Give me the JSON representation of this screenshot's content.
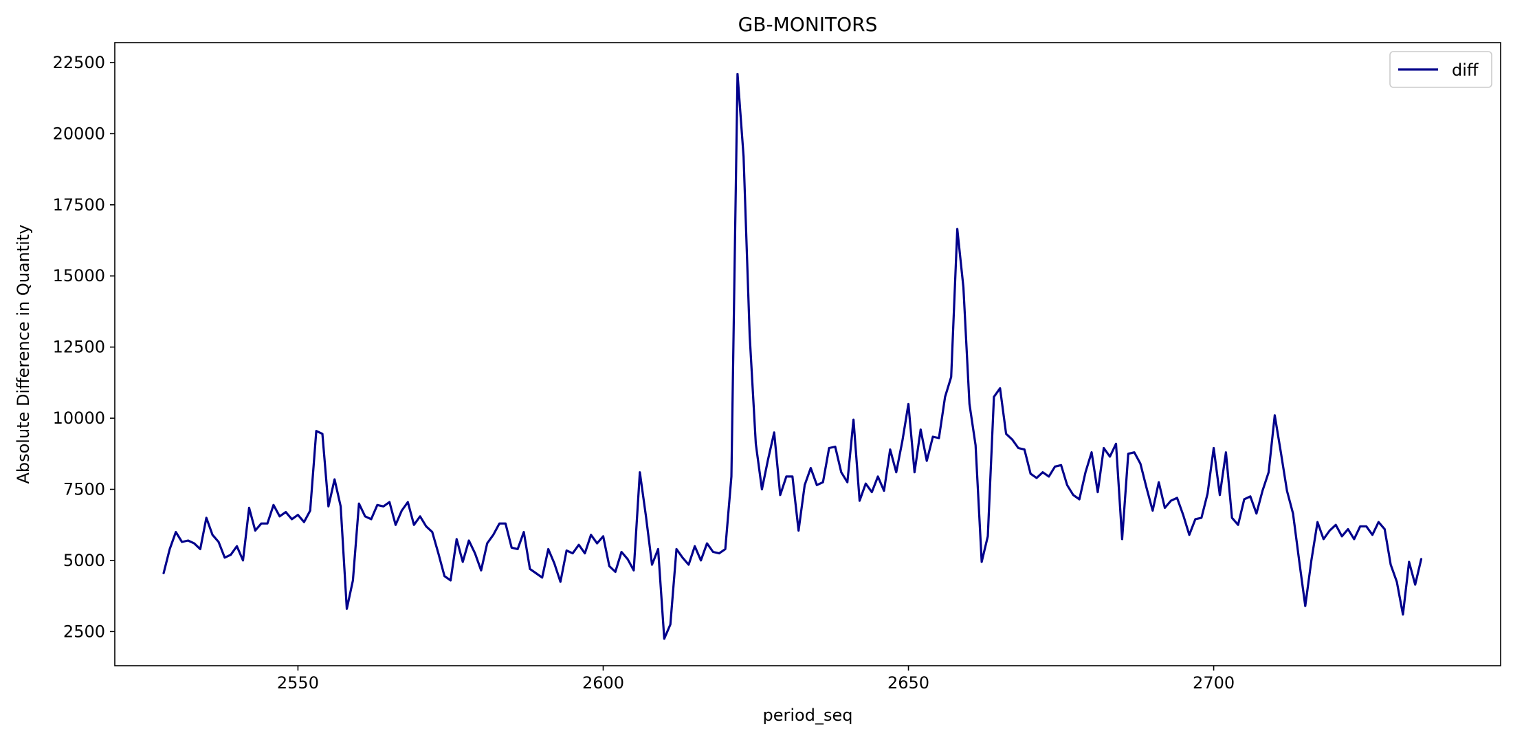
{
  "chart_data": {
    "type": "line",
    "title": "GB-MONITORS",
    "xlabel": "period_seq",
    "ylabel": "Absolute Difference in Quantity",
    "xlim": [
      2520,
      2747
    ],
    "ylim": [
      1300,
      23200
    ],
    "xticks": [
      2550,
      2600,
      2650,
      2700
    ],
    "xtick_labels": [
      "2550",
      "2600",
      "2650",
      "2700"
    ],
    "yticks": [
      2500,
      5000,
      7500,
      10000,
      12500,
      15000,
      17500,
      20000,
      22500
    ],
    "ytick_labels": [
      "2500",
      "5000",
      "7500",
      "10000",
      "12500",
      "15000",
      "17500",
      "20000",
      "22500"
    ],
    "grid": false,
    "legend_position": "top-right",
    "series": [
      {
        "name": "diff",
        "color": "#00008b",
        "x_start": 2528,
        "values": [
          4550,
          5400,
          6000,
          5650,
          5700,
          5600,
          5400,
          6500,
          5900,
          5650,
          5100,
          5200,
          5500,
          5000,
          6850,
          6050,
          6300,
          6300,
          6950,
          6550,
          6700,
          6450,
          6600,
          6350,
          6750,
          9550,
          9450,
          6900,
          7850,
          6900,
          3300,
          4300,
          7000,
          6550,
          6450,
          6950,
          6900,
          7050,
          6250,
          6750,
          7050,
          6250,
          6550,
          6200,
          6000,
          5250,
          4450,
          4300,
          5750,
          4950,
          5700,
          5250,
          4650,
          5600,
          5900,
          6300,
          6300,
          5450,
          5400,
          6000,
          4700,
          4550,
          4400,
          5400,
          4900,
          4250,
          5350,
          5250,
          5550,
          5250,
          5900,
          5600,
          5850,
          4800,
          4600,
          5300,
          5050,
          4650,
          8100,
          6550,
          4850,
          5400,
          2250,
          2750,
          5400,
          5100,
          4850,
          5500,
          5000,
          5600,
          5300,
          5250,
          5400,
          7950,
          22100,
          19200,
          12900,
          9100,
          7500,
          8550,
          9500,
          7300,
          7950,
          7950,
          6050,
          7650,
          8250,
          7650,
          7750,
          8950,
          9000,
          8100,
          7750,
          9950,
          7100,
          7700,
          7400,
          7950,
          7450,
          8900,
          8100,
          9200,
          10500,
          8100,
          9600,
          8500,
          9350,
          9300,
          10750,
          11450,
          16650,
          14600,
          10500,
          9050,
          4950,
          5850,
          10750,
          11050,
          9450,
          9250,
          8950,
          8900,
          8050,
          7900,
          8100,
          7950,
          8300,
          8350,
          7650,
          7300,
          7150,
          8100,
          8800,
          7400,
          8950,
          8650,
          9100,
          5750,
          8750,
          8800,
          8400,
          7550,
          6750,
          7750,
          6850,
          7100,
          7200,
          6600,
          5900,
          6450,
          6500,
          7350,
          8950,
          7300,
          8800,
          6500,
          6250,
          7150,
          7250,
          6650,
          7450,
          8100,
          10100,
          8800,
          7450,
          6650,
          5000,
          3400,
          5000,
          6350,
          5750,
          6050,
          6250,
          5850,
          6100,
          5750,
          6200,
          6200,
          5900,
          6350,
          6100,
          4850,
          4250,
          3100,
          4950,
          4150,
          5050
        ]
      }
    ]
  }
}
